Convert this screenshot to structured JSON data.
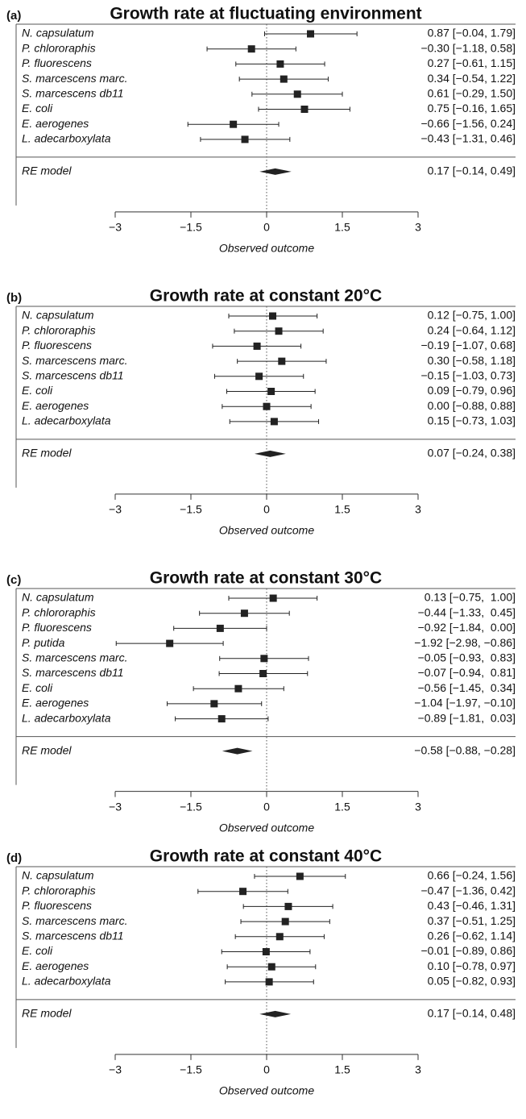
{
  "chart_data": [
    {
      "type": "forest",
      "panel": "(a)",
      "title": "Growth rate at fluctuating environment",
      "categories": [
        "N. capsulatum",
        "P. chlororaphis",
        "P. fluorescens",
        "S. marcescens marc.",
        "S. marcescens db11",
        "E. coli",
        "E. aerogenes",
        "L. adecarboxylata"
      ],
      "values": [
        0.87,
        -0.3,
        0.27,
        0.34,
        0.61,
        0.75,
        -0.66,
        -0.43
      ],
      "lower": [
        -0.04,
        -1.18,
        -0.61,
        -0.54,
        -0.29,
        -0.16,
        -1.56,
        -1.31
      ],
      "upper": [
        1.79,
        0.58,
        1.15,
        1.22,
        1.5,
        1.65,
        0.24,
        0.46
      ],
      "value_labels": [
        "0.87 [−0.04, 1.79]",
        "−0.30 [−1.18, 0.58]",
        "0.27 [−0.61, 1.15]",
        "0.34 [−0.54, 1.22]",
        "0.61 [−0.29, 1.50]",
        "0.75 [−0.16, 1.65]",
        "−0.66 [−1.56, 0.24]",
        "−0.43 [−1.31, 0.46]"
      ],
      "summary": {
        "name": "RE model",
        "value": 0.17,
        "lower": -0.14,
        "upper": 0.49,
        "value_label": "0.17 [−0.14, 0.49]"
      },
      "xlim": [
        -3,
        3
      ],
      "xticks": [
        {
          "value": -3,
          "label": "−3"
        },
        {
          "value": -1.5,
          "label": "−1.5"
        },
        0,
        1.5,
        3
      ],
      "xlabel": "Observed outcome",
      "reference_line": 0,
      "color": "#222222"
    },
    {
      "type": "forest",
      "panel": "(b)",
      "title": "Growth rate at constant 20°C",
      "categories": [
        "N. capsulatum",
        "P. chlororaphis",
        "P. fluorescens",
        "S. marcescens marc.",
        "S. marcescens db11",
        "E. coli",
        "E. aerogenes",
        "L. adecarboxylata"
      ],
      "values": [
        0.12,
        0.24,
        -0.19,
        0.3,
        -0.15,
        0.09,
        0.0,
        0.15
      ],
      "lower": [
        -0.75,
        -0.64,
        -1.07,
        -0.58,
        -1.03,
        -0.79,
        -0.88,
        -0.73
      ],
      "upper": [
        1.0,
        1.12,
        0.68,
        1.18,
        0.73,
        0.96,
        0.88,
        1.03
      ],
      "value_labels": [
        "0.12 [−0.75, 1.00]",
        "0.24 [−0.64, 1.12]",
        "−0.19 [−1.07, 0.68]",
        "0.30 [−0.58, 1.18]",
        "−0.15 [−1.03, 0.73]",
        "0.09 [−0.79, 0.96]",
        "0.00 [−0.88, 0.88]",
        "0.15 [−0.73, 1.03]"
      ],
      "summary": {
        "name": "RE model",
        "value": 0.07,
        "lower": -0.24,
        "upper": 0.38,
        "value_label": "0.07 [−0.24, 0.38]"
      },
      "xlim": [
        -3,
        3
      ],
      "xticks": [
        {
          "value": -3,
          "label": "−3"
        },
        {
          "value": -1.5,
          "label": "−1.5"
        },
        0,
        1.5,
        3
      ],
      "xlabel": "Observed outcome",
      "reference_line": 0,
      "color": "#222222"
    },
    {
      "type": "forest",
      "panel": "(c)",
      "title": "Growth rate at constant 30°C",
      "categories": [
        "N. capsulatum",
        "P. chlororaphis",
        "P. fluorescens",
        "P. putida",
        "S. marcescens marc.",
        "S. marcescens db11",
        "E. coli",
        "E. aerogenes",
        "L. adecarboxylata"
      ],
      "values": [
        0.13,
        -0.44,
        -0.92,
        -1.92,
        -0.05,
        -0.07,
        -0.56,
        -1.04,
        -0.89
      ],
      "lower": [
        -0.75,
        -1.33,
        -1.84,
        -2.98,
        -0.93,
        -0.94,
        -1.45,
        -1.97,
        -1.81
      ],
      "upper": [
        1.0,
        0.45,
        0.0,
        -0.86,
        0.83,
        0.81,
        0.34,
        -0.1,
        0.03
      ],
      "value_labels": [
        "0.13 [−0.75,  1.00]",
        "−0.44 [−1.33,  0.45]",
        "−0.92 [−1.84,  0.00]",
        "−1.92 [−2.98, −0.86]",
        "−0.05 [−0.93,  0.83]",
        "−0.07 [−0.94,  0.81]",
        "−0.56 [−1.45,  0.34]",
        "−1.04 [−1.97, −0.10]",
        "−0.89 [−1.81,  0.03]"
      ],
      "summary": {
        "name": "RE model",
        "value": -0.58,
        "lower": -0.88,
        "upper": -0.28,
        "value_label": "−0.58 [−0.88, −0.28]"
      },
      "xlim": [
        -3,
        3
      ],
      "xticks": [
        {
          "value": -3,
          "label": "−3"
        },
        {
          "value": -1.5,
          "label": "−1.5"
        },
        0,
        1.5,
        3
      ],
      "xlabel": "Observed outcome",
      "reference_line": 0,
      "color": "#222222"
    },
    {
      "type": "forest",
      "panel": "(d)",
      "title": "Growth rate at constant 40°C",
      "categories": [
        "N. capsulatum",
        "P. chlororaphis",
        "P. fluorescens",
        "S. marcescens marc.",
        "S. marcescens db11",
        "E. coli",
        "E. aerogenes",
        "L. adecarboxylata"
      ],
      "values": [
        0.66,
        -0.47,
        0.43,
        0.37,
        0.26,
        -0.01,
        0.1,
        0.05
      ],
      "lower": [
        -0.24,
        -1.36,
        -0.46,
        -0.51,
        -0.62,
        -0.89,
        -0.78,
        -0.82
      ],
      "upper": [
        1.56,
        0.42,
        1.31,
        1.25,
        1.14,
        0.86,
        0.97,
        0.93
      ],
      "value_labels": [
        "0.66 [−0.24, 1.56]",
        "−0.47 [−1.36, 0.42]",
        "0.43 [−0.46, 1.31]",
        "0.37 [−0.51, 1.25]",
        "0.26 [−0.62, 1.14]",
        "−0.01 [−0.89, 0.86]",
        "0.10 [−0.78, 0.97]",
        "0.05 [−0.82, 0.93]"
      ],
      "summary": {
        "name": "RE model",
        "value": 0.17,
        "lower": -0.14,
        "upper": 0.48,
        "value_label": "0.17 [−0.14, 0.48]"
      },
      "xlim": [
        -3,
        3
      ],
      "xticks": [
        {
          "value": -3,
          "label": "−3"
        },
        {
          "value": -1.5,
          "label": "−1.5"
        },
        0,
        1.5,
        3
      ],
      "xlabel": "Observed outcome",
      "reference_line": 0,
      "color": "#222222"
    }
  ]
}
